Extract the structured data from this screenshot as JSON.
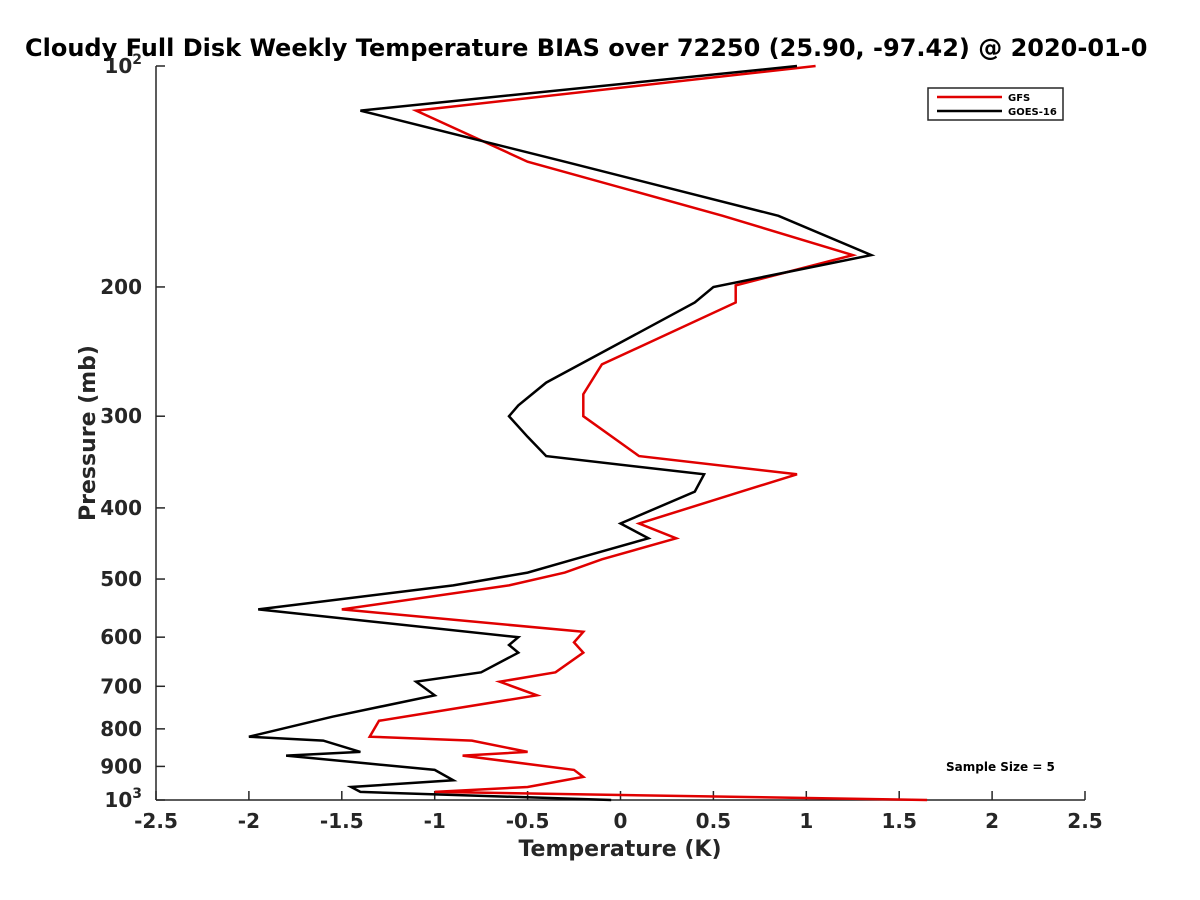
{
  "chart_data": {
    "type": "line",
    "title": "Cloudy Full Disk Weekly Temperature BIAS over 72250 (25.90, -97.42) @ 2020-01-0",
    "xlabel": "Temperature (K)",
    "ylabel": "Pressure (mb)",
    "xlim": [
      -2.5,
      2.5
    ],
    "ylim": [
      100,
      1000
    ],
    "y_scale": "log",
    "y_reversed": true,
    "x_ticks": [
      "-2.5",
      "-2",
      "-1.5",
      "-1",
      "-0.5",
      "0",
      "0.5",
      "1",
      "1.5",
      "2",
      "2.5"
    ],
    "y_ticks": [
      {
        "value": 100,
        "base": "10",
        "exp": "2"
      },
      {
        "value": 200,
        "label": "200"
      },
      {
        "value": 300,
        "label": "300"
      },
      {
        "value": 400,
        "label": "400"
      },
      {
        "value": 500,
        "label": "500"
      },
      {
        "value": 600,
        "label": "600"
      },
      {
        "value": 700,
        "label": "700"
      },
      {
        "value": 800,
        "label": "800"
      },
      {
        "value": 900,
        "label": "900"
      },
      {
        "value": 1000,
        "base": "10",
        "exp": "3"
      }
    ],
    "legend_position": "top-right",
    "annotation": "Sample Size = 5",
    "series": [
      {
        "name": "GFS",
        "color": "#e00000",
        "points": [
          [
            1.05,
            100
          ],
          [
            -1.1,
            115
          ],
          [
            -0.5,
            135
          ],
          [
            0.55,
            160
          ],
          [
            1.25,
            181
          ],
          [
            0.62,
            199
          ],
          [
            0.62,
            210
          ],
          [
            -0.1,
            255
          ],
          [
            -0.2,
            280
          ],
          [
            -0.2,
            300
          ],
          [
            0.1,
            340
          ],
          [
            0.95,
            360
          ],
          [
            0.65,
            380
          ],
          [
            0.1,
            420
          ],
          [
            0.3,
            440
          ],
          [
            -0.1,
            470
          ],
          [
            -0.3,
            490
          ],
          [
            -0.6,
            510
          ],
          [
            -1.5,
            550
          ],
          [
            -0.2,
            590
          ],
          [
            -0.25,
            610
          ],
          [
            -0.2,
            630
          ],
          [
            -0.35,
            670
          ],
          [
            -0.65,
            690
          ],
          [
            -0.45,
            720
          ],
          [
            -1.3,
            780
          ],
          [
            -1.35,
            820
          ],
          [
            -0.8,
            830
          ],
          [
            -0.5,
            860
          ],
          [
            -0.85,
            870
          ],
          [
            -0.25,
            910
          ],
          [
            -0.2,
            930
          ],
          [
            -0.5,
            960
          ],
          [
            -1.0,
            975
          ],
          [
            1.65,
            1000
          ]
        ]
      },
      {
        "name": "GOES-16",
        "color": "#000000",
        "points": [
          [
            0.95,
            100
          ],
          [
            -1.4,
            115
          ],
          [
            -0.3,
            135
          ],
          [
            0.85,
            160
          ],
          [
            1.35,
            181
          ],
          [
            0.5,
            200
          ],
          [
            0.4,
            210
          ],
          [
            -0.4,
            270
          ],
          [
            -0.55,
            290
          ],
          [
            -0.6,
            300
          ],
          [
            -0.5,
            320
          ],
          [
            -0.4,
            340
          ],
          [
            0.45,
            360
          ],
          [
            0.4,
            380
          ],
          [
            0.0,
            420
          ],
          [
            0.15,
            440
          ],
          [
            -0.25,
            470
          ],
          [
            -0.5,
            490
          ],
          [
            -0.9,
            510
          ],
          [
            -1.95,
            550
          ],
          [
            -0.55,
            600
          ],
          [
            -0.6,
            615
          ],
          [
            -0.55,
            630
          ],
          [
            -0.75,
            670
          ],
          [
            -1.1,
            690
          ],
          [
            -1.0,
            720
          ],
          [
            -1.55,
            770
          ],
          [
            -2.0,
            820
          ],
          [
            -1.6,
            830
          ],
          [
            -1.4,
            860
          ],
          [
            -1.8,
            870
          ],
          [
            -1.0,
            910
          ],
          [
            -0.9,
            940
          ],
          [
            -1.45,
            960
          ],
          [
            -1.4,
            975
          ],
          [
            -0.05,
            1000
          ]
        ]
      }
    ]
  }
}
